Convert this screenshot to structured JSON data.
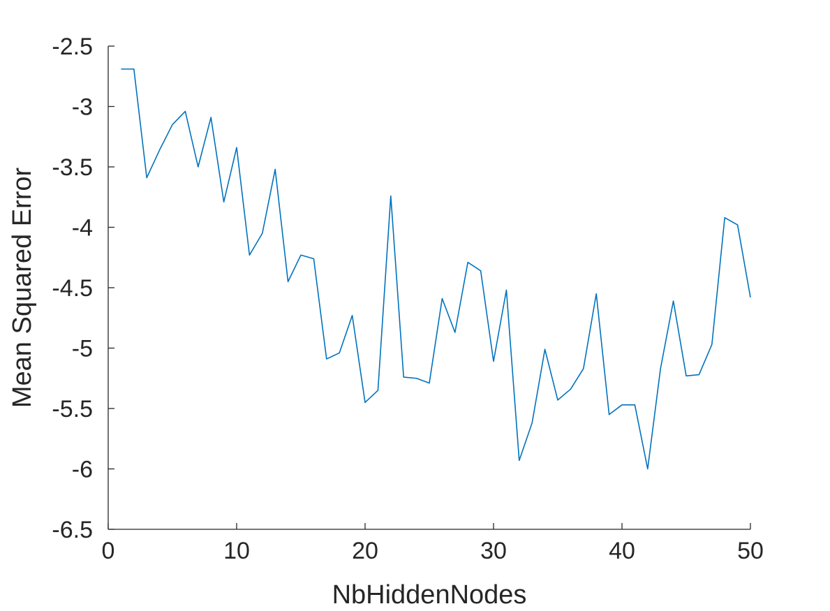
{
  "chart_data": {
    "type": "line",
    "title": "",
    "xlabel": "NbHiddenNodes",
    "ylabel": "Mean Squared Error",
    "xlim": [
      0,
      50
    ],
    "ylim": [
      -6.5,
      -2.5
    ],
    "xticks": [
      0,
      10,
      20,
      30,
      40,
      50
    ],
    "xtick_labels": [
      "0",
      "10",
      "20",
      "30",
      "40",
      "50"
    ],
    "yticks": [
      -6.5,
      -6,
      -5.5,
      -5,
      -4.5,
      -4,
      -3.5,
      -3,
      -2.5
    ],
    "ytick_labels": [
      "-6.5",
      "-6",
      "-5.5",
      "-5",
      "-4.5",
      "-4",
      "-3.5",
      "-3",
      "-2.5"
    ],
    "grid": false,
    "legend": "none",
    "series": [
      {
        "color": "#0072BD",
        "x": [
          1,
          2,
          3,
          4,
          5,
          6,
          7,
          8,
          9,
          10,
          11,
          12,
          13,
          14,
          15,
          16,
          17,
          18,
          19,
          20,
          21,
          22,
          23,
          24,
          25,
          26,
          27,
          28,
          29,
          30,
          31,
          32,
          33,
          34,
          35,
          36,
          37,
          38,
          39,
          40,
          41,
          42,
          43,
          44,
          45,
          46,
          47,
          48,
          49,
          50
        ],
        "values": [
          -2.69,
          -2.69,
          -3.59,
          -3.36,
          -3.15,
          -3.04,
          -3.5,
          -3.09,
          -3.79,
          -3.34,
          -4.23,
          -4.05,
          -3.52,
          -4.45,
          -4.23,
          -4.26,
          -5.09,
          -5.04,
          -4.73,
          -5.45,
          -5.35,
          -3.74,
          -5.24,
          -5.25,
          -5.29,
          -4.59,
          -4.87,
          -4.29,
          -4.36,
          -5.11,
          -4.52,
          -5.93,
          -5.62,
          -5.01,
          -5.43,
          -5.34,
          -5.17,
          -4.55,
          -5.55,
          -5.47,
          -5.47,
          -6.0,
          -5.17,
          -4.61,
          -5.23,
          -5.22,
          -4.97,
          -3.92,
          -3.98,
          -4.58
        ]
      }
    ]
  }
}
